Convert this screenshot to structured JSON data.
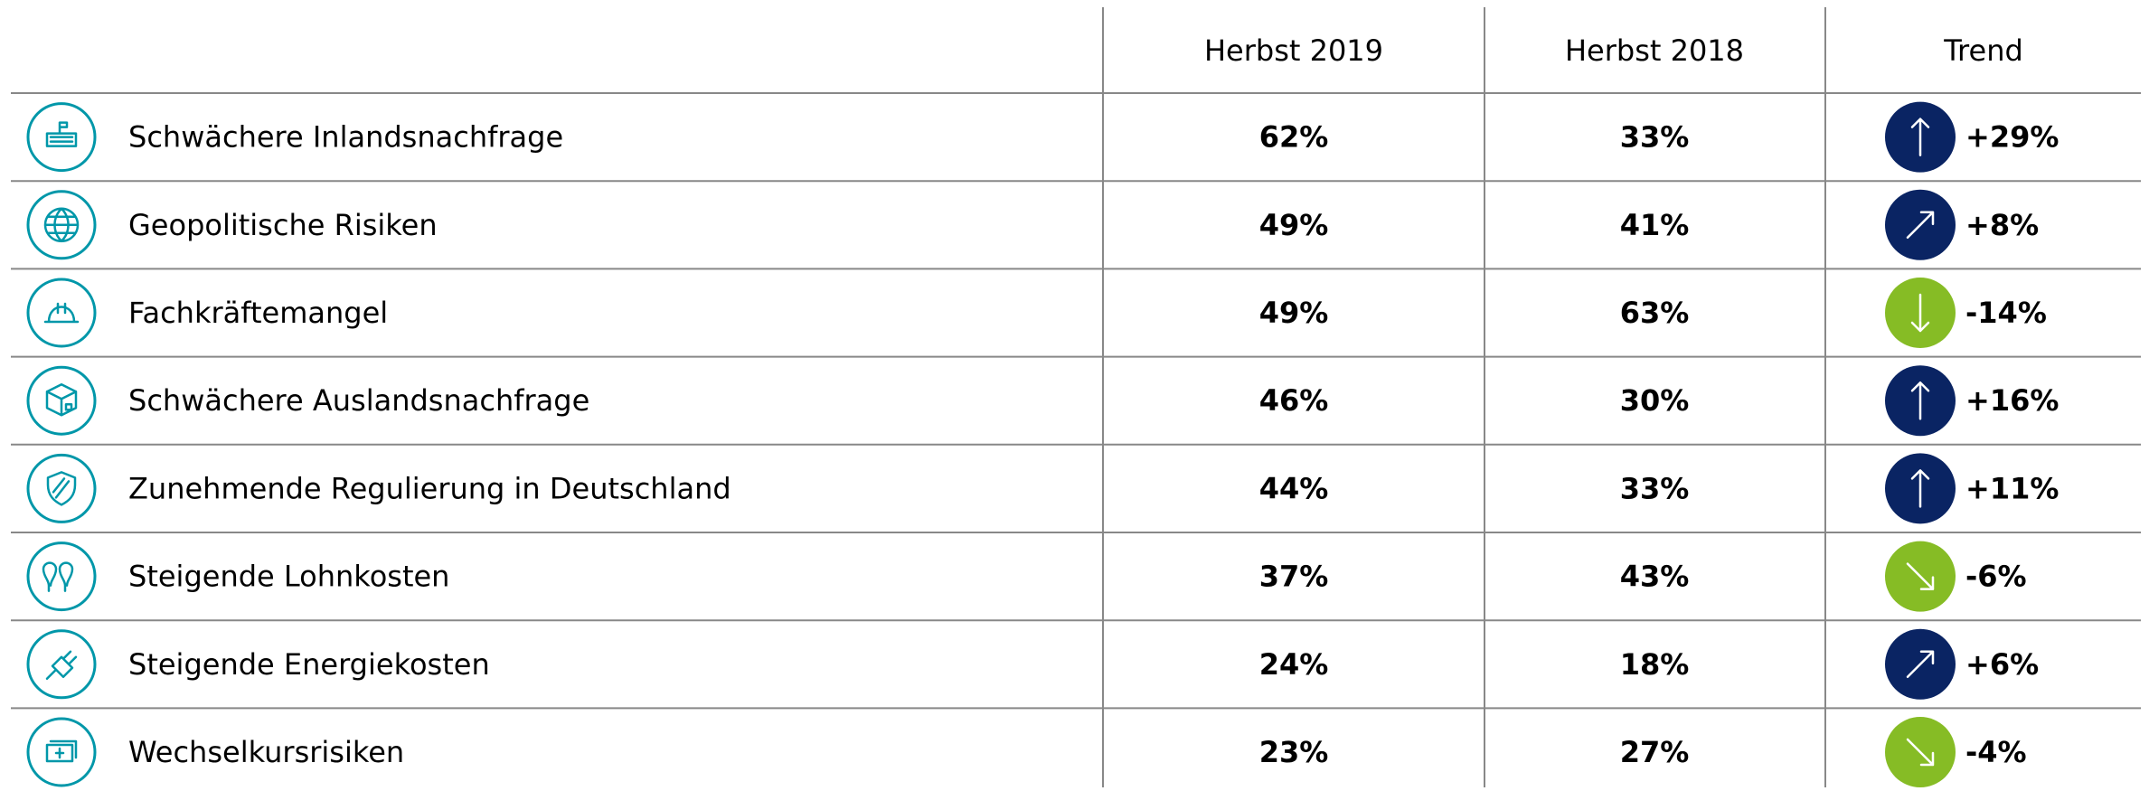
{
  "table": {
    "columns": [
      "Herbst 2019",
      "Herbst 2018",
      "Trend"
    ],
    "rows": [
      {
        "label": "Schwächere Inlandsnachfrage",
        "cells": [
          "62%",
          "33%",
          "+29%"
        ],
        "direction": "up",
        "color": "#0a2463"
      },
      {
        "label": "Geopolitische Risiken",
        "cells": [
          "49%",
          "41%",
          "+8%"
        ],
        "direction": "up-right",
        "color": "#0a2463"
      },
      {
        "label": "Fachkräftemangel",
        "cells": [
          "49%",
          "63%",
          "-14%"
        ],
        "direction": "down",
        "color": "#86bc25"
      },
      {
        "label": "Schwächere Auslandsnachfrage",
        "cells": [
          "46%",
          "30%",
          "+16%"
        ],
        "direction": "up",
        "color": "#0a2463"
      },
      {
        "label": "Zunehmende Regulierung in Deutschland",
        "cells": [
          "44%",
          "33%",
          "+11%"
        ],
        "direction": "up",
        "color": "#0a2463"
      },
      {
        "label": "Steigende Lohnkosten",
        "cells": [
          "37%",
          "43%",
          "-6%"
        ],
        "direction": "down-right",
        "color": "#86bc25"
      },
      {
        "label": "Steigende Energiekosten",
        "cells": [
          "24%",
          "18%",
          "+6%"
        ],
        "direction": "up-right",
        "color": "#0a2463"
      },
      {
        "label": "Wechselkursrisiken",
        "cells": [
          "23%",
          "27%",
          "-4%"
        ],
        "direction": "down-right",
        "color": "#86bc25"
      }
    ]
  }
}
